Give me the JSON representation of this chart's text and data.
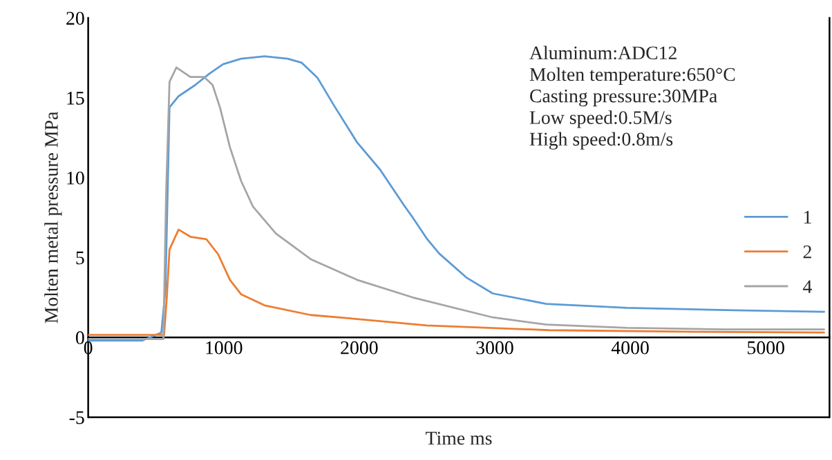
{
  "chart_data": {
    "type": "line",
    "xlabel": "Time ms",
    "ylabel": "Molten metal pressure MPa",
    "xlim": [
      0,
      5470
    ],
    "ylim": [
      -5,
      20
    ],
    "xticks": [
      0,
      1000,
      2000,
      3000,
      4000,
      5000
    ],
    "yticks": [
      -5,
      0,
      5,
      10,
      15,
      20
    ],
    "grid": false,
    "legend": "right",
    "line_style": "solid",
    "marker": "none",
    "annotations": [
      "Aluminum:ADC12",
      "Molten temperature:650°C",
      "Casting pressure:30MPa",
      "Low speed:0.5M/s",
      "High speed:0.8m/s"
    ],
    "series": [
      {
        "name": "1",
        "color": "#5b9bd5",
        "x": [
          0,
          200,
          400,
          540,
          570,
          600,
          667,
          790,
          892,
          995,
          1128,
          1302,
          1472,
          1574,
          1692,
          1815,
          1985,
          2154,
          2328,
          2395,
          2497,
          2590,
          2790,
          2985,
          3380,
          3975,
          4765,
          5430
        ],
        "values": [
          -0.2,
          -0.2,
          -0.2,
          0.3,
          3,
          14.4,
          15.1,
          15.8,
          16.5,
          17.1,
          17.45,
          17.6,
          17.45,
          17.2,
          16.25,
          14.5,
          12.2,
          10.5,
          8.3,
          7.5,
          6.2,
          5.25,
          3.75,
          2.75,
          2.1,
          1.85,
          1.7,
          1.6
        ]
      },
      {
        "name": "2",
        "color": "#ed7d31",
        "x": [
          0,
          200,
          400,
          560,
          580,
          600,
          667,
          754,
          872,
          959,
          1046,
          1128,
          1302,
          1641,
          1985,
          2497,
          3400,
          4500,
          5430
        ],
        "values": [
          0.15,
          0.15,
          0.15,
          0.15,
          2.5,
          5.5,
          6.75,
          6.3,
          6.15,
          5.2,
          3.6,
          2.7,
          2.0,
          1.4,
          1.15,
          0.75,
          0.45,
          0.35,
          0.3
        ]
      },
      {
        "name": "4",
        "color": "#a5a5a5",
        "x": [
          0,
          200,
          400,
          555,
          575,
          600,
          651,
          754,
          856,
          918,
          974,
          1046,
          1128,
          1215,
          1385,
          1641,
          1985,
          2395,
          2985,
          3380,
          3975,
          4700,
          5430
        ],
        "values": [
          -0.1,
          -0.1,
          -0.1,
          -0.1,
          9,
          16.0,
          16.9,
          16.3,
          16.3,
          15.8,
          14.35,
          11.9,
          9.8,
          8.2,
          6.5,
          4.9,
          3.6,
          2.5,
          1.25,
          0.8,
          0.6,
          0.5,
          0.5
        ]
      }
    ]
  }
}
